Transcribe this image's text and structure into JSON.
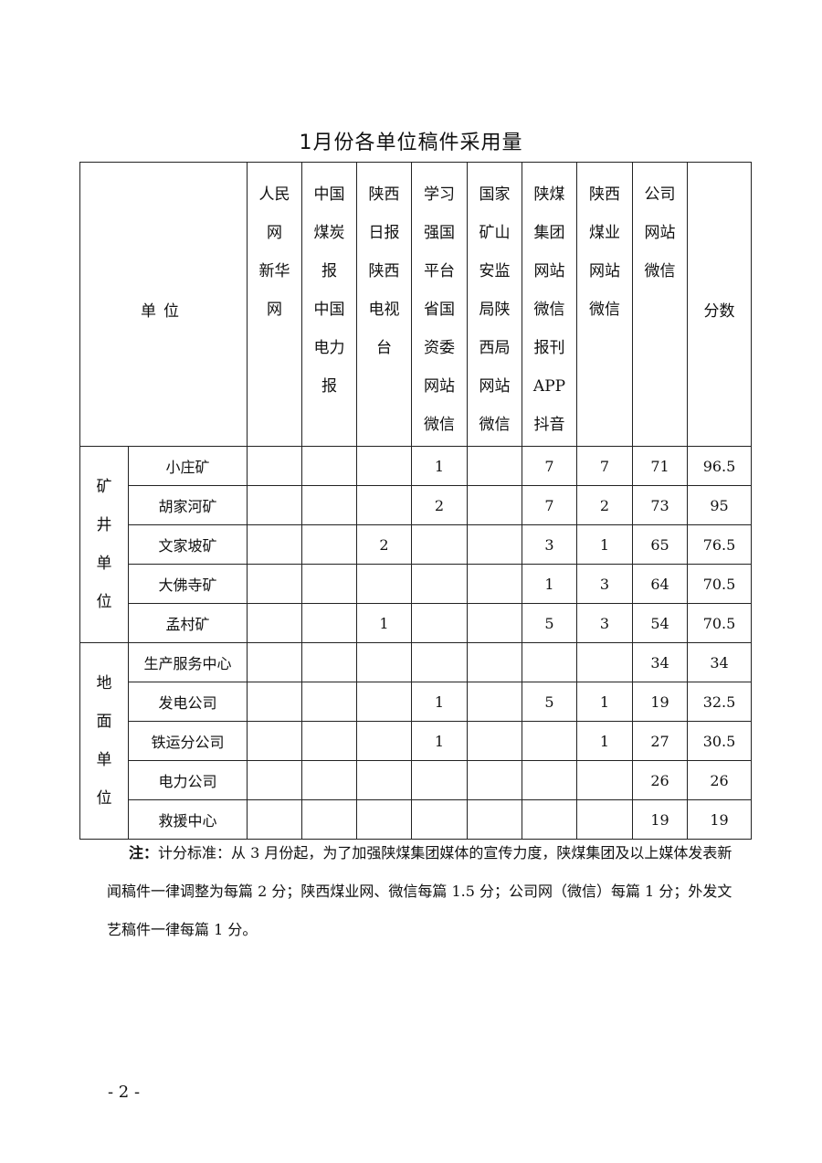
{
  "title": "1月份各单位稿件采用量",
  "table": {
    "unit_header": "单位",
    "score_header": "分数",
    "media_headers": [
      "人民\n网\n新华\n网",
      "中国\n煤炭\n报\n中国\n电力\n报",
      "陕西\n日报\n陕西\n电视\n台",
      "学习\n强国\n平台\n省国\n资委\n网站\n微信",
      "国家\n矿山\n安监\n局陕\n西局\n网站\n微信",
      "陕煤\n集团\n网站\n微信\n报刊\nAPP\n抖音",
      "陕西\n煤业\n网站\n微信",
      "公司\n网站\n微信"
    ],
    "groups": [
      {
        "label": "矿\n井\n单\n位",
        "rows": [
          {
            "unit": "小庄矿",
            "values": [
              "",
              "",
              "",
              "1",
              "",
              "7",
              "7",
              "71"
            ],
            "score": "96.5"
          },
          {
            "unit": "胡家河矿",
            "values": [
              "",
              "",
              "",
              "2",
              "",
              "7",
              "2",
              "73"
            ],
            "score": "95"
          },
          {
            "unit": "文家坡矿",
            "values": [
              "",
              "",
              "2",
              "",
              "",
              "3",
              "1",
              "65"
            ],
            "score": "76.5"
          },
          {
            "unit": "大佛寺矿",
            "values": [
              "",
              "",
              "",
              "",
              "",
              "1",
              "3",
              "64"
            ],
            "score": "70.5"
          },
          {
            "unit": "孟村矿",
            "values": [
              "",
              "",
              "1",
              "",
              "",
              "5",
              "3",
              "54"
            ],
            "score": "70.5"
          }
        ]
      },
      {
        "label": "地\n面\n单\n位",
        "rows": [
          {
            "unit": "生产服务中心",
            "values": [
              "",
              "",
              "",
              "",
              "",
              "",
              "",
              "34"
            ],
            "score": "34"
          },
          {
            "unit": "发电公司",
            "values": [
              "",
              "",
              "",
              "1",
              "",
              "5",
              "1",
              "19"
            ],
            "score": "32.5"
          },
          {
            "unit": "铁运分公司",
            "values": [
              "",
              "",
              "",
              "1",
              "",
              "",
              "1",
              "27"
            ],
            "score": "30.5"
          },
          {
            "unit": "电力公司",
            "values": [
              "",
              "",
              "",
              "",
              "",
              "",
              "",
              "26"
            ],
            "score": "26"
          },
          {
            "unit": "救援中心",
            "values": [
              "",
              "",
              "",
              "",
              "",
              "",
              "",
              "19"
            ],
            "score": "19"
          }
        ]
      }
    ]
  },
  "note": {
    "label": "注：",
    "text": "计分标准：从 3 月份起，为了加强陕煤集团媒体的宣传力度，陕煤集团及以上媒体发表新闻稿件一律调整为每篇 2 分；陕西煤业网、微信每篇 1.5 分；公司网（微信）每篇 1 分；外发文艺稿件一律每篇 1 分。"
  },
  "page_number": "- 2 -"
}
